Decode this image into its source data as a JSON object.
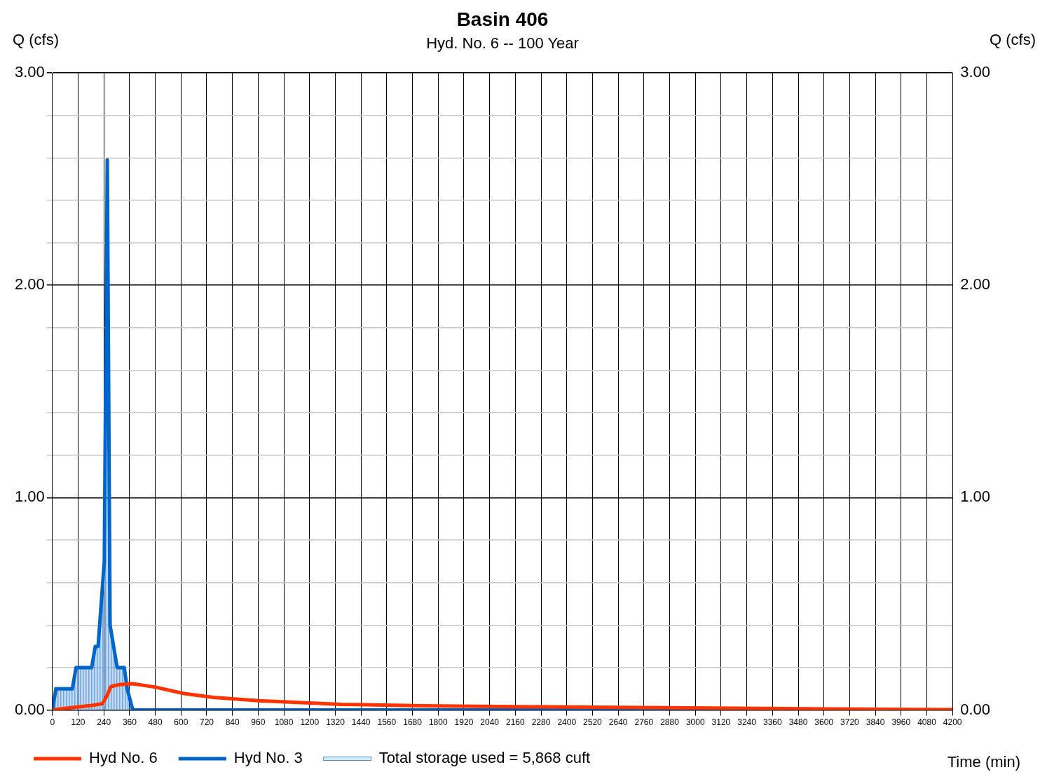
{
  "chart_data": {
    "type": "line",
    "title": "Basin 406",
    "subtitle": "Hyd. No. 6 -- 100 Year",
    "xlabel": "Time (min)",
    "ylabel": "Q (cfs)",
    "y2label": "Q (cfs)",
    "xlim": [
      0,
      4200
    ],
    "xticks": [
      0,
      120,
      240,
      360,
      480,
      600,
      720,
      840,
      960,
      1080,
      1200,
      1320,
      1440,
      1560,
      1680,
      1800,
      1920,
      2040,
      2160,
      2280,
      2400,
      2520,
      2640,
      2760,
      2880,
      3000,
      3120,
      3240,
      3360,
      3480,
      3600,
      3720,
      3840,
      3960,
      4080,
      4200
    ],
    "ylim": [
      0,
      3
    ],
    "yticks": [
      {
        "value": 0,
        "label": "0.00"
      },
      {
        "value": 0.2,
        "label": null
      },
      {
        "value": 0.4,
        "label": null
      },
      {
        "value": 0.6,
        "label": null
      },
      {
        "value": 0.8,
        "label": null
      },
      {
        "value": 1,
        "label": "1.00"
      },
      {
        "value": 1.2,
        "label": null
      },
      {
        "value": 1.4,
        "label": null
      },
      {
        "value": 1.6,
        "label": null
      },
      {
        "value": 1.8,
        "label": null
      },
      {
        "value": 2,
        "label": "2.00"
      },
      {
        "value": 2.2,
        "label": null
      },
      {
        "value": 2.4,
        "label": null
      },
      {
        "value": 2.6,
        "label": null
      },
      {
        "value": 2.8,
        "label": null
      },
      {
        "value": 3,
        "label": "3.00"
      }
    ],
    "y2lim": [
      0,
      3
    ],
    "y2ticks": [
      {
        "value": 0,
        "label": "0.00"
      },
      {
        "value": 1,
        "label": "1.00"
      },
      {
        "value": 2,
        "label": "2.00"
      },
      {
        "value": 3,
        "label": "3.00"
      }
    ],
    "grid": true,
    "legend": "bottom",
    "marker": "none",
    "line_style": "solid",
    "series": [
      {
        "name": "Hyd No. 6",
        "type": "line",
        "color": "#ff3300",
        "x": [
          0,
          16,
          93,
          183,
          233,
          256,
          272,
          302,
          349,
          375,
          481,
          608,
          750,
          963,
          1348,
          1730,
          2317,
          2980,
          3645,
          4200
        ],
        "values": [
          0,
          0.003,
          0.012,
          0.022,
          0.03,
          0.07,
          0.11,
          0.118,
          0.123,
          0.124,
          0.108,
          0.079,
          0.06,
          0.044,
          0.027,
          0.02,
          0.015,
          0.01,
          0.005,
          0.002
        ]
      },
      {
        "name": "Hyd No. 3",
        "type": "line",
        "color": "#0066cc",
        "x": [
          0,
          16,
          93,
          110,
          183,
          200,
          213,
          242,
          256,
          269,
          302,
          335,
          349,
          375,
          4200
        ],
        "values": [
          0,
          0.1,
          0.1,
          0.2,
          0.2,
          0.3,
          0.3,
          0.7,
          2.59,
          0.4,
          0.2,
          0.2,
          0.1,
          0,
          0
        ]
      },
      {
        "name": "Total storage used = 5,868 cuft",
        "type": "area",
        "color": "#4a90d9",
        "x": [
          0,
          16,
          93,
          110,
          183,
          200,
          213,
          242,
          256,
          269,
          302,
          335,
          349,
          375
        ],
        "values": [
          0,
          0.1,
          0.1,
          0.2,
          0.2,
          0.3,
          0.3,
          0.7,
          2.59,
          0.4,
          0.2,
          0.2,
          0.1,
          0
        ]
      }
    ]
  }
}
